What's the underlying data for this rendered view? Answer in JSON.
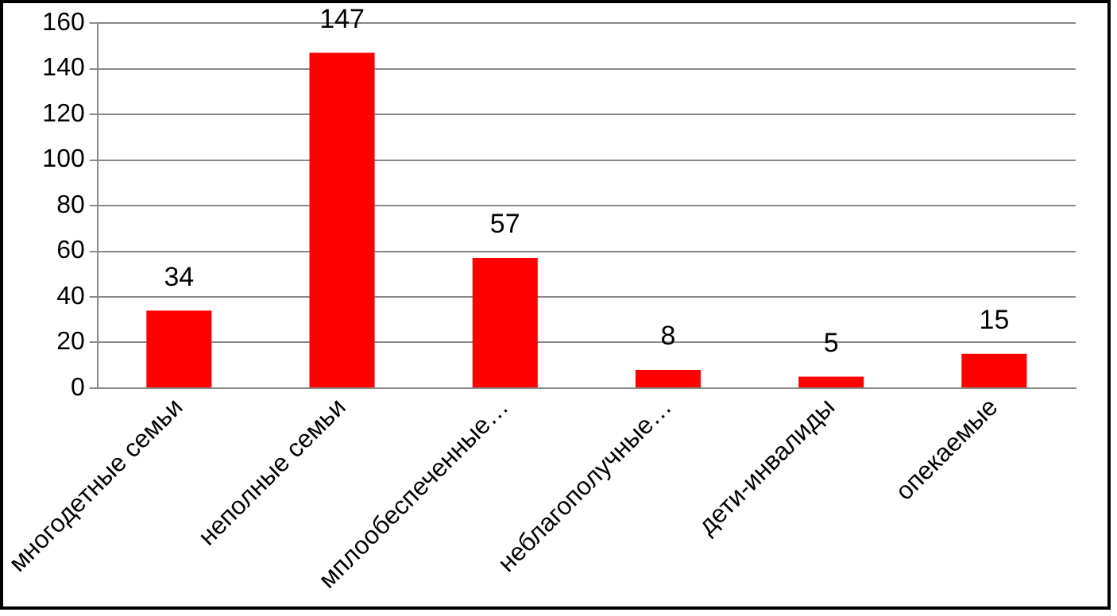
{
  "chart_data": {
    "type": "bar",
    "categories": [
      "многодетные семьи",
      "неполные семьи",
      "мплообеспеченные…",
      "неблагополучные…",
      "дети-инвалиды",
      "опекаемые"
    ],
    "values": [
      34,
      147,
      57,
      8,
      5,
      15
    ],
    "color": "#ff0000",
    "ylim": [
      0,
      160
    ],
    "yticks": [
      0,
      20,
      40,
      60,
      80,
      100,
      120,
      140,
      160
    ],
    "grid": "y",
    "data_labels": true,
    "legend": false
  }
}
